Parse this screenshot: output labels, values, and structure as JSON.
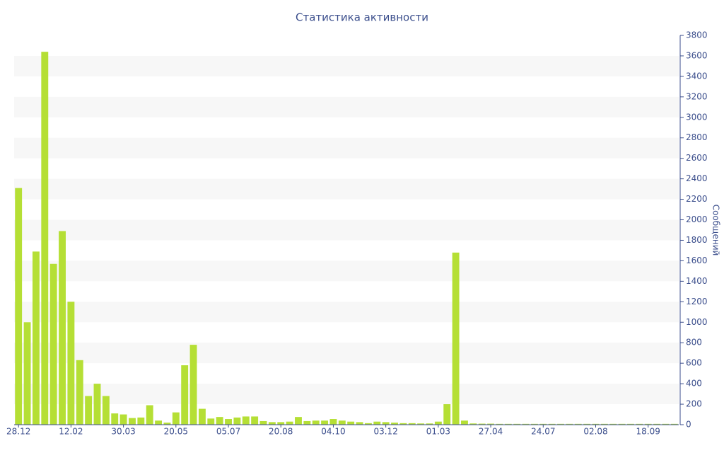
{
  "chart_data": {
    "type": "bar",
    "title": "Статистика активности",
    "y_label": "Сообщений",
    "categories": [
      "28.12",
      null,
      null,
      null,
      null,
      null,
      "12.02",
      null,
      null,
      null,
      null,
      null,
      "30.03",
      null,
      null,
      null,
      null,
      null,
      "20.05",
      null,
      null,
      null,
      null,
      null,
      "05.07",
      null,
      null,
      null,
      null,
      null,
      "20.08",
      null,
      null,
      null,
      null,
      null,
      "04.10",
      null,
      null,
      null,
      null,
      null,
      "03.12",
      null,
      null,
      null,
      null,
      null,
      "01.03",
      null,
      null,
      null,
      null,
      null,
      "27.04",
      null,
      null,
      null,
      null,
      null,
      "24.07",
      null,
      null,
      null,
      null,
      null,
      "02.08",
      null,
      null,
      null,
      null,
      null,
      "18.09",
      null,
      null,
      null
    ],
    "values": [
      2310,
      1000,
      1690,
      3640,
      1570,
      1890,
      1200,
      630,
      280,
      400,
      280,
      110,
      100,
      65,
      70,
      190,
      40,
      20,
      120,
      580,
      780,
      155,
      60,
      75,
      55,
      70,
      80,
      80,
      35,
      25,
      25,
      30,
      75,
      35,
      40,
      40,
      55,
      40,
      30,
      25,
      15,
      30,
      25,
      20,
      15,
      15,
      12,
      12,
      30,
      200,
      1680,
      40,
      12,
      10,
      10,
      8,
      8,
      8,
      8,
      8,
      8,
      8,
      8,
      8,
      8,
      8,
      8,
      8,
      8,
      8,
      8,
      8,
      8,
      8,
      8,
      8
    ],
    "color": "#b5df35",
    "ylim": [
      0,
      3800
    ],
    "yticks": [
      0,
      200,
      400,
      600,
      800,
      1000,
      1200,
      1400,
      1600,
      1800,
      2000,
      2200,
      2400,
      2600,
      2800,
      3000,
      3200,
      3400,
      3600,
      3800
    ],
    "grid": true,
    "y_axis_side": "right"
  }
}
